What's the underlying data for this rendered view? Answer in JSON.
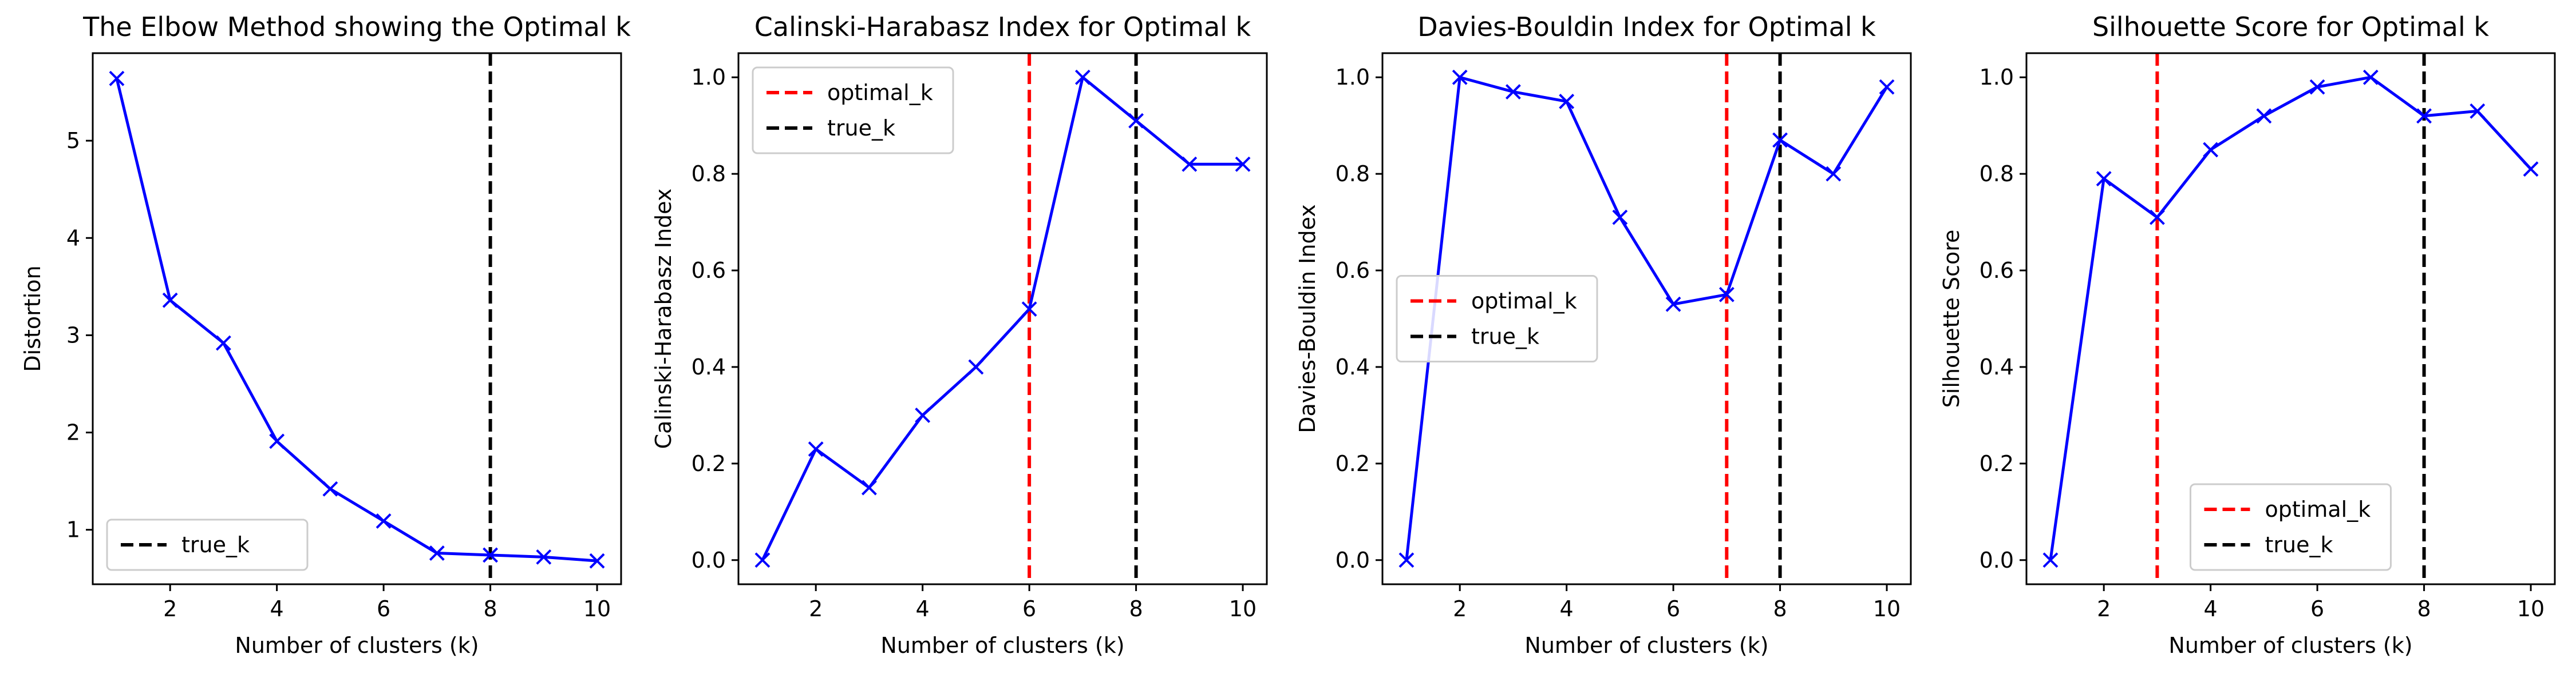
{
  "chart_data": [
    {
      "type": "line",
      "title": "The Elbow Method showing the Optimal k",
      "xlabel": "Number of clusters (k)",
      "ylabel": "Distortion",
      "xlim": [
        0.55,
        10.45
      ],
      "ylim": [
        0.44,
        5.9
      ],
      "xticks": [
        2,
        4,
        6,
        8,
        10
      ],
      "yticks": [
        1,
        2,
        3,
        4,
        5
      ],
      "x": [
        1,
        2,
        3,
        4,
        5,
        6,
        7,
        8,
        9,
        10
      ],
      "series": [
        {
          "values": [
            5.64,
            3.36,
            2.92,
            1.91,
            1.42,
            1.09,
            0.76,
            0.74,
            0.72,
            0.68
          ],
          "color": "#0000ff",
          "marker": "x"
        }
      ],
      "vlines": [
        {
          "x": 8,
          "label": "true_k",
          "color": "#000000"
        }
      ],
      "legend": "lower-left",
      "grid": false
    },
    {
      "type": "line",
      "title": "Calinski-Harabasz Index for Optimal k",
      "xlabel": "Number of clusters (k)",
      "ylabel": "Calinski-Harabasz Index",
      "xlim": [
        0.55,
        10.45
      ],
      "ylim": [
        -0.05,
        1.05
      ],
      "xticks": [
        2,
        4,
        6,
        8,
        10
      ],
      "yticks": [
        0.0,
        0.2,
        0.4,
        0.6,
        0.8,
        1.0
      ],
      "x": [
        1,
        2,
        3,
        4,
        5,
        6,
        7,
        8,
        9,
        10
      ],
      "series": [
        {
          "values": [
            0.0,
            0.23,
            0.15,
            0.3,
            0.4,
            0.52,
            1.0,
            0.91,
            0.82,
            0.82
          ],
          "color": "#0000ff",
          "marker": "x"
        }
      ],
      "vlines": [
        {
          "x": 6,
          "label": "optimal_k",
          "color": "#ff0000"
        },
        {
          "x": 8,
          "label": "true_k",
          "color": "#000000"
        }
      ],
      "legend": "upper-left",
      "grid": false
    },
    {
      "type": "line",
      "title": "Davies-Bouldin Index for Optimal k",
      "xlabel": "Number of clusters (k)",
      "ylabel": "Davies-Bouldin Index",
      "xlim": [
        0.55,
        10.45
      ],
      "ylim": [
        -0.05,
        1.05
      ],
      "xticks": [
        2,
        4,
        6,
        8,
        10
      ],
      "yticks": [
        0.0,
        0.2,
        0.4,
        0.6,
        0.8,
        1.0
      ],
      "x": [
        1,
        2,
        3,
        4,
        5,
        6,
        7,
        8,
        9,
        10
      ],
      "series": [
        {
          "values": [
            0.0,
            1.0,
            0.97,
            0.95,
            0.71,
            0.53,
            0.55,
            0.87,
            0.8,
            0.98
          ],
          "color": "#0000ff",
          "marker": "x"
        }
      ],
      "vlines": [
        {
          "x": 7,
          "label": "optimal_k",
          "color": "#ff0000"
        },
        {
          "x": 8,
          "label": "true_k",
          "color": "#000000"
        }
      ],
      "legend": "center-left",
      "grid": false
    },
    {
      "type": "line",
      "title": "Silhouette Score for Optimal k",
      "xlabel": "Number of clusters (k)",
      "ylabel": "Silhouette Score",
      "xlim": [
        0.55,
        10.45
      ],
      "ylim": [
        -0.05,
        1.05
      ],
      "xticks": [
        2,
        4,
        6,
        8,
        10
      ],
      "yticks": [
        0.0,
        0.2,
        0.4,
        0.6,
        0.8,
        1.0
      ],
      "x": [
        1,
        2,
        3,
        4,
        5,
        6,
        7,
        8,
        9,
        10
      ],
      "series": [
        {
          "values": [
            0.0,
            0.79,
            0.71,
            0.85,
            0.92,
            0.98,
            1.0,
            0.92,
            0.93,
            0.81
          ],
          "color": "#0000ff",
          "marker": "x"
        }
      ],
      "vlines": [
        {
          "x": 3,
          "label": "optimal_k",
          "color": "#ff0000"
        },
        {
          "x": 8,
          "label": "true_k",
          "color": "#000000"
        }
      ],
      "legend": "lower-center",
      "grid": false
    }
  ]
}
